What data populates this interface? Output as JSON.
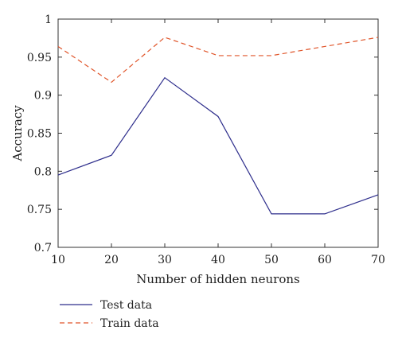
{
  "chart_data": {
    "type": "line",
    "title": "",
    "xlabel": "Number of hidden neurons",
    "ylabel": "Accuracy",
    "x": [
      10,
      20,
      30,
      40,
      50,
      60,
      70
    ],
    "xlim": [
      10,
      70
    ],
    "ylim": [
      0.7,
      1
    ],
    "xticks": [
      "10",
      "20",
      "30",
      "40",
      "50",
      "60",
      "70"
    ],
    "yticks": [
      "0.7",
      "0.75",
      "0.8",
      "0.85",
      "0.9",
      "0.95",
      "1"
    ],
    "grid": false,
    "legend_position": "bottom-left",
    "series": [
      {
        "name": "Test data",
        "style": "solid",
        "color": "#2e2e8c",
        "values": [
          0.795,
          0.821,
          0.923,
          0.872,
          0.744,
          0.744,
          0.769
        ]
      },
      {
        "name": "Train data",
        "style": "dashed",
        "color": "#e0552a",
        "values": [
          0.964,
          0.917,
          0.976,
          0.952,
          0.952,
          0.964,
          0.976
        ]
      }
    ]
  }
}
